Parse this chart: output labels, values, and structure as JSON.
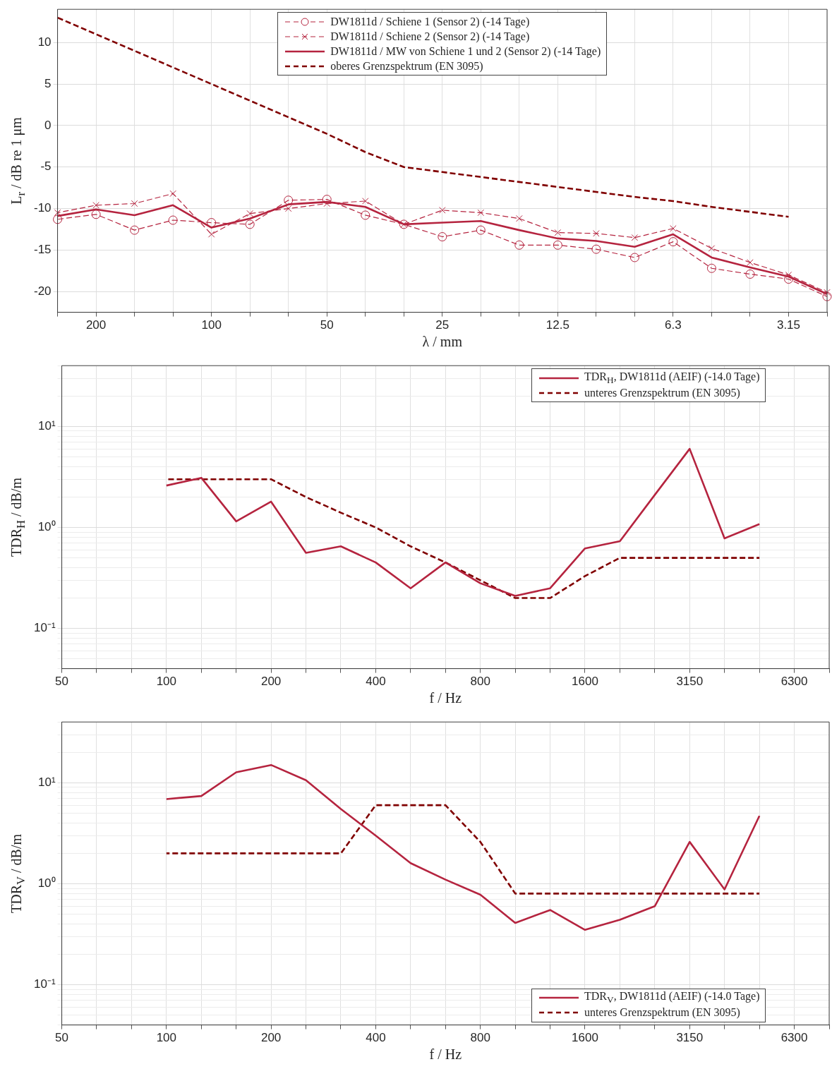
{
  "chart_data": [
    {
      "type": "line",
      "xlabel": "λ / mm",
      "ylabel": "L$_{r}$ / dB re 1 μm",
      "categories": [
        null,
        "200",
        null,
        null,
        "100",
        null,
        null,
        "50",
        null,
        null,
        "25",
        null,
        null,
        "12.5",
        null,
        null,
        "6.3",
        null,
        null,
        "3.15",
        null
      ],
      "series": [
        {
          "name": "DW1811d / Schiene 1 (Sensor 2) (-14 Tage)",
          "color": "#b5243f",
          "line_style": "dashed",
          "marker": "circle",
          "values": [
            -11.3,
            -10.7,
            -12.6,
            -11.4,
            -11.7,
            -11.9,
            -9.0,
            -8.9,
            -10.8,
            -11.9,
            -13.4,
            -12.6,
            -14.4,
            -14.4,
            -14.9,
            -15.9,
            -14.0,
            -17.2,
            -17.9,
            -18.5,
            -20.6
          ]
        },
        {
          "name": "DW1811d / Schiene 2 (Sensor 2) (-14 Tage)",
          "color": "#b5243f",
          "line_style": "dashed",
          "marker": "cross",
          "values": [
            -10.5,
            -9.6,
            -9.4,
            -8.2,
            -13.1,
            -10.6,
            -10.0,
            -9.4,
            -9.1,
            -11.9,
            -10.2,
            -10.5,
            -11.2,
            -12.9,
            -13.0,
            -13.5,
            -12.4,
            -14.8,
            -16.5,
            -18.0,
            -20.1
          ]
        },
        {
          "name": "DW1811d / MW von Schiene 1 und 2 (Sensor 2) (-14 Tage)",
          "color": "#b5243f",
          "line_style": "solid",
          "values": [
            -10.9,
            -10.1,
            -10.8,
            -9.6,
            -12.3,
            -11.2,
            -9.5,
            -9.2,
            -9.8,
            -11.9,
            -11.7,
            -11.5,
            -12.6,
            -13.6,
            -13.9,
            -14.6,
            -13.1,
            -15.9,
            -17.1,
            -18.2,
            -20.3
          ]
        },
        {
          "name": "oberes Grenzspektrum (EN 3095)",
          "color": "#800000",
          "line_style": "dashed",
          "values": [
            13,
            11,
            9,
            7,
            5,
            3,
            1,
            -1,
            -3.2,
            -5,
            -5.6,
            -6.2,
            -6.8,
            -7.4,
            -8,
            -8.6,
            -9.1,
            -9.8,
            -10.4,
            -11,
            null
          ]
        }
      ],
      "ylim": [
        -22.5,
        14
      ],
      "yticks": [
        -20,
        -15,
        -10,
        -5,
        0,
        5,
        10
      ],
      "grid": true,
      "legend": "top"
    },
    {
      "type": "line",
      "xlabel": "f / Hz",
      "ylabel": "TDR$_{H}$ / dB/m",
      "log": "y",
      "categories": [
        "50",
        null,
        null,
        "100",
        null,
        null,
        "200",
        null,
        null,
        "400",
        null,
        null,
        "800",
        null,
        null,
        "1600",
        null,
        null,
        "3150",
        null,
        null,
        "6300",
        null
      ],
      "series": [
        {
          "name": "TDR$_{H}$, DW1811d (AEIF) (-14.0 Tage)",
          "color": "#b5243f",
          "line_style": "solid",
          "values": [
            null,
            null,
            null,
            2.6,
            3.1,
            1.15,
            1.8,
            0.56,
            0.65,
            0.45,
            0.25,
            0.45,
            0.28,
            0.21,
            0.25,
            0.62,
            0.73,
            2.1,
            6.0,
            0.78,
            1.08,
            null,
            null
          ]
        },
        {
          "name": "unteres Grenzspektrum (EN 3095)",
          "color": "#800000",
          "line_style": "dashed",
          "values": [
            null,
            null,
            null,
            3,
            3,
            3,
            3,
            2,
            1.4,
            1,
            0.65,
            0.45,
            0.3,
            0.2,
            0.2,
            0.33,
            0.5,
            0.5,
            0.5,
            0.5,
            0.5,
            null,
            null
          ]
        }
      ],
      "ylim": [
        0.04,
        40
      ],
      "yticks": [
        {
          "value": 0.04,
          "label": null
        },
        {
          "value": 0.05,
          "label": null
        },
        {
          "value": 0.06,
          "label": null
        },
        {
          "value": 0.07,
          "label": null
        },
        {
          "value": 0.08,
          "label": null
        },
        {
          "value": 0.09,
          "label": null
        },
        {
          "value": 0.1,
          "label": "10⁻¹"
        },
        {
          "value": 0.2,
          "label": null
        },
        {
          "value": 0.3,
          "label": null
        },
        {
          "value": 0.4,
          "label": null
        },
        {
          "value": 0.5,
          "label": null
        },
        {
          "value": 0.6,
          "label": null
        },
        {
          "value": 0.7,
          "label": null
        },
        {
          "value": 0.8,
          "label": null
        },
        {
          "value": 0.9,
          "label": null
        },
        {
          "value": 1,
          "label": "10⁰"
        },
        {
          "value": 2,
          "label": null
        },
        {
          "value": 3,
          "label": null
        },
        {
          "value": 4,
          "label": null
        },
        {
          "value": 5,
          "label": null
        },
        {
          "value": 6,
          "label": null
        },
        {
          "value": 7,
          "label": null
        },
        {
          "value": 8,
          "label": null
        },
        {
          "value": 9,
          "label": null
        },
        {
          "value": 10,
          "label": "10¹"
        },
        {
          "value": 20,
          "label": null
        },
        {
          "value": 30,
          "label": null
        },
        {
          "value": 40,
          "label": null
        }
      ],
      "grid": true,
      "legend": "top right"
    },
    {
      "type": "line",
      "xlabel": "f / Hz",
      "ylabel": "TDR$_{V}$ / dB/m",
      "log": "y",
      "categories": [
        "50",
        null,
        null,
        "100",
        null,
        null,
        "200",
        null,
        null,
        "400",
        null,
        null,
        "800",
        null,
        null,
        "1600",
        null,
        null,
        "3150",
        null,
        null,
        "6300",
        null
      ],
      "series": [
        {
          "name": "TDR$_{V}$, DW1811d (AEIF) (-14.0 Tage)",
          "color": "#b5243f",
          "line_style": "solid",
          "values": [
            null,
            null,
            null,
            6.9,
            7.4,
            12.7,
            15,
            10.6,
            5.5,
            3.0,
            1.6,
            1.1,
            0.78,
            0.41,
            0.55,
            0.35,
            0.44,
            0.6,
            2.6,
            0.88,
            4.7,
            null,
            null
          ]
        },
        {
          "name": "unteres Grenzspektrum (EN 3095)",
          "color": "#800000",
          "line_style": "dashed",
          "values": [
            null,
            null,
            null,
            2,
            2,
            2,
            2,
            2,
            2,
            6,
            6,
            6,
            2.6,
            0.8,
            0.8,
            0.8,
            0.8,
            0.8,
            0.8,
            0.8,
            0.8,
            null,
            null
          ]
        }
      ],
      "ylim": [
        0.04,
        40
      ],
      "yticks": [
        {
          "value": 0.04,
          "label": null
        },
        {
          "value": 0.05,
          "label": null
        },
        {
          "value": 0.06,
          "label": null
        },
        {
          "value": 0.07,
          "label": null
        },
        {
          "value": 0.08,
          "label": null
        },
        {
          "value": 0.09,
          "label": null
        },
        {
          "value": 0.1,
          "label": "10⁻¹"
        },
        {
          "value": 0.2,
          "label": null
        },
        {
          "value": 0.3,
          "label": null
        },
        {
          "value": 0.4,
          "label": null
        },
        {
          "value": 0.5,
          "label": null
        },
        {
          "value": 0.6,
          "label": null
        },
        {
          "value": 0.7,
          "label": null
        },
        {
          "value": 0.8,
          "label": null
        },
        {
          "value": 0.9,
          "label": null
        },
        {
          "value": 1,
          "label": "10⁰"
        },
        {
          "value": 2,
          "label": null
        },
        {
          "value": 3,
          "label": null
        },
        {
          "value": 4,
          "label": null
        },
        {
          "value": 5,
          "label": null
        },
        {
          "value": 6,
          "label": null
        },
        {
          "value": 7,
          "label": null
        },
        {
          "value": 8,
          "label": null
        },
        {
          "value": 9,
          "label": null
        },
        {
          "value": 10,
          "label": "10¹"
        },
        {
          "value": 20,
          "label": null
        },
        {
          "value": 30,
          "label": null
        },
        {
          "value": 40,
          "label": null
        }
      ],
      "grid": true,
      "legend": "bottom right"
    }
  ]
}
